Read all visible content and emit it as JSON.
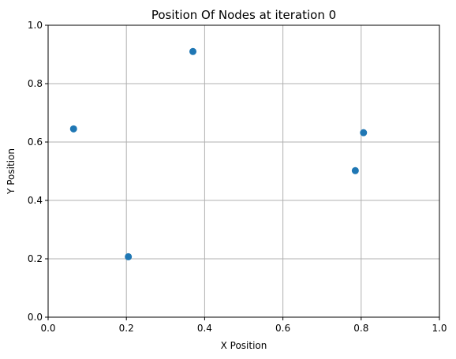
{
  "chart_data": {
    "type": "scatter",
    "title": "Position Of Nodes at iteration 0",
    "xlabel": "X Position",
    "ylabel": "Y Position",
    "xlim": [
      0,
      1
    ],
    "ylim": [
      0,
      1
    ],
    "xticks": [
      "0.0",
      "0.2",
      "0.4",
      "0.6",
      "0.8",
      "1.0"
    ],
    "yticks": [
      "0.0",
      "0.2",
      "0.4",
      "0.6",
      "0.8",
      "1.0"
    ],
    "grid": true,
    "marker_color": "#1f77b4",
    "points": [
      {
        "x": 0.065,
        "y": 0.645
      },
      {
        "x": 0.205,
        "y": 0.207
      },
      {
        "x": 0.37,
        "y": 0.91
      },
      {
        "x": 0.785,
        "y": 0.502
      },
      {
        "x": 0.806,
        "y": 0.632
      }
    ]
  }
}
